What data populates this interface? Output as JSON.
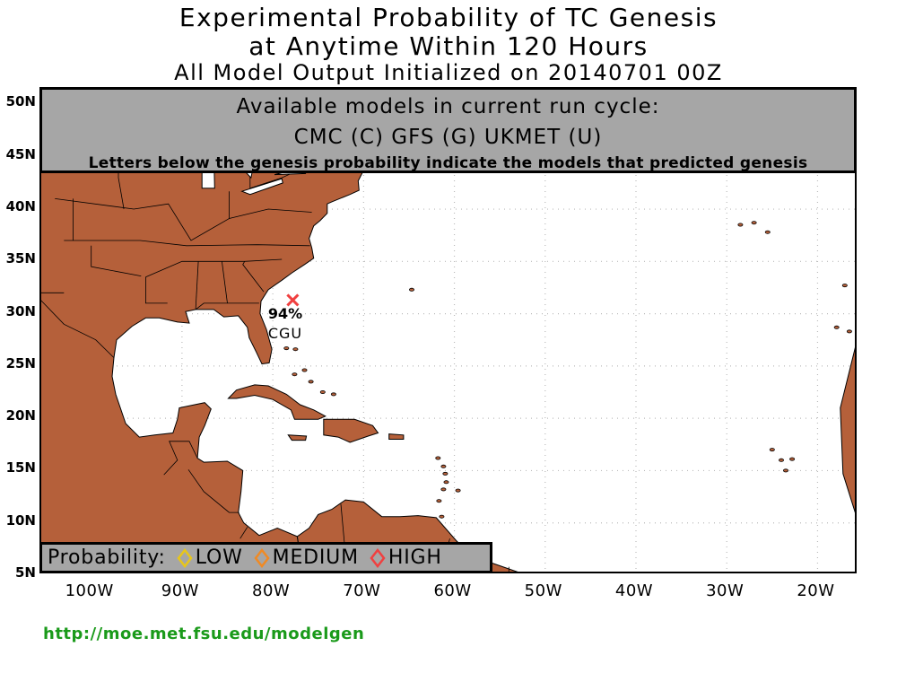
{
  "title": {
    "line1": "Experimental Probability of TC Genesis",
    "line2": "at Anytime Within 120 Hours",
    "line3": "All Model Output Initialized on 20140701 00Z"
  },
  "models_box": {
    "title": "Available models in current run cycle:",
    "list": "CMC (C) GFS (G)  UKMET (U)",
    "note": "Letters below the genesis probability indicate the models that predicted genesis"
  },
  "legend": {
    "label": "Probability:",
    "items": [
      {
        "label": "LOW",
        "color": "#e8c61a"
      },
      {
        "label": "MEDIUM",
        "color": "#f08a24"
      },
      {
        "label": "HIGH",
        "color": "#f04040"
      }
    ]
  },
  "map": {
    "land_color": "#b5603a",
    "ocean_color": "#ffffff",
    "grid": true,
    "lat_labels": [
      "50N",
      "45N",
      "40N",
      "35N",
      "30N",
      "25N",
      "20N",
      "15N",
      "10N",
      "5N"
    ],
    "lon_labels": [
      "100W",
      "90W",
      "80W",
      "70W",
      "60W",
      "50W",
      "40W",
      "30W",
      "20W"
    ],
    "lat_range": [
      5,
      51.5
    ],
    "lon_range": [
      -105.5,
      -15.5
    ]
  },
  "storm": {
    "lat": 31.3,
    "lon": -77.8,
    "probability": "94%",
    "models": "CGU",
    "color": "#f04040"
  },
  "url": "http://moe.met.fsu.edu/modelgen"
}
